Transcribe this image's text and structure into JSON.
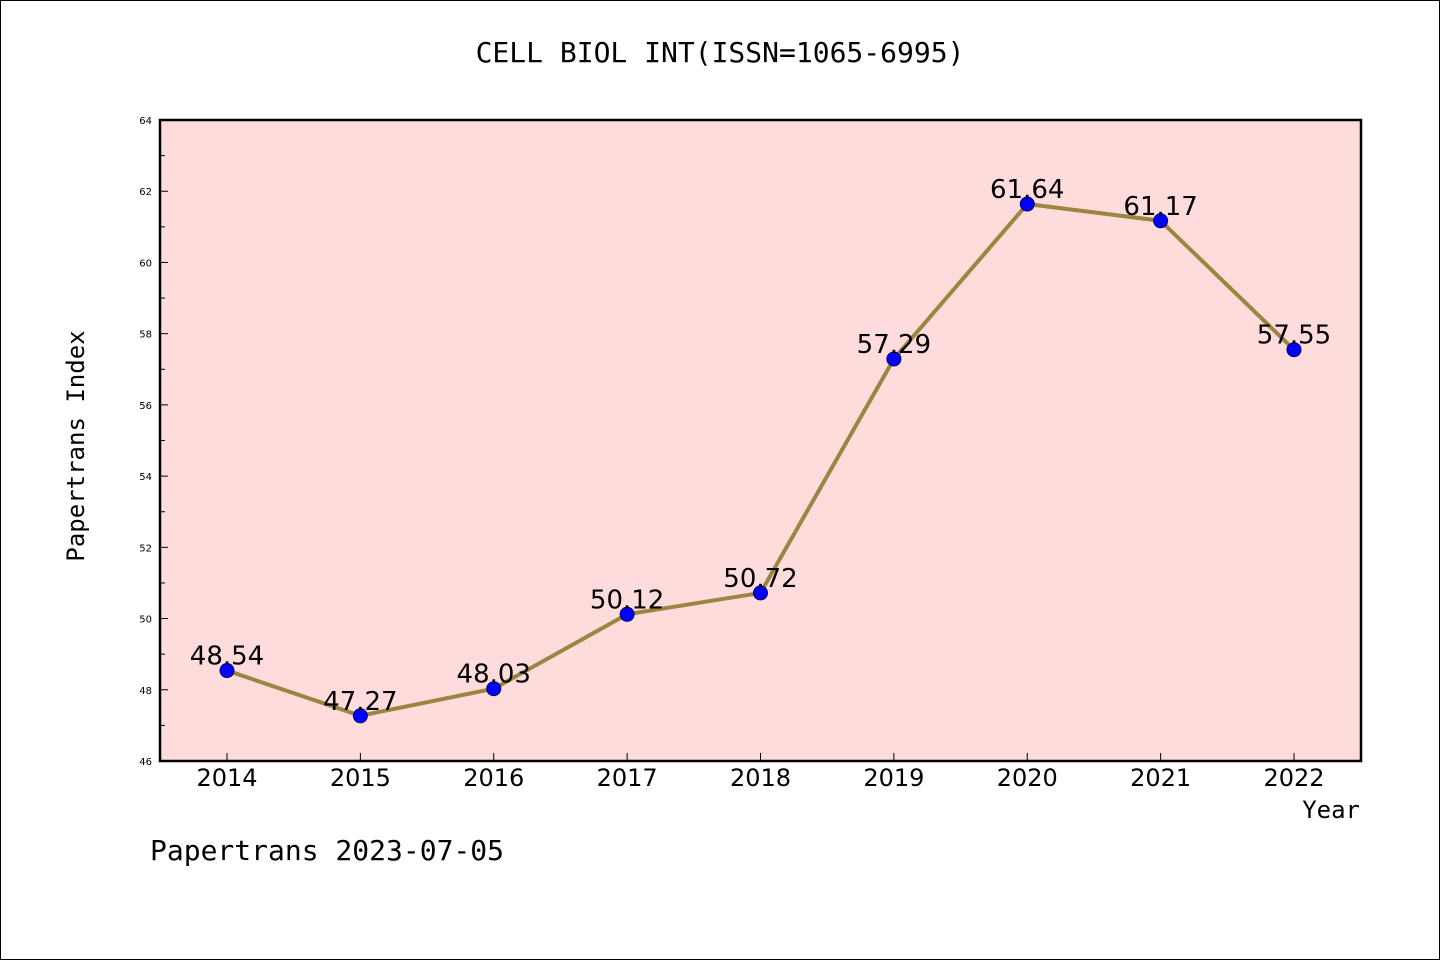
{
  "chart_data": {
    "type": "line",
    "title": "CELL BIOL INT(ISSN=1065-6995)",
    "xlabel": "Year",
    "ylabel": "Papertrans Index",
    "categories": [
      "2014",
      "2015",
      "2016",
      "2017",
      "2018",
      "2019",
      "2020",
      "2021",
      "2022"
    ],
    "values": [
      48.54,
      47.27,
      48.03,
      50.12,
      50.72,
      57.29,
      61.64,
      61.17,
      57.55
    ],
    "value_labels": [
      "48.54",
      "47.27",
      "48.03",
      "50.12",
      "50.72",
      "57.29",
      "61.64",
      "61.17",
      "57.55"
    ],
    "ylim": [
      46,
      64
    ],
    "yticks": [
      "46",
      "48",
      "50",
      "52",
      "54",
      "56",
      "58",
      "60",
      "62",
      "64"
    ],
    "grid": false,
    "legend": "none",
    "colors": {
      "background": "#ffdcdc",
      "line": "#9b8540",
      "marker": "#0000ff"
    }
  },
  "footer": "Papertrans 2023-07-05"
}
